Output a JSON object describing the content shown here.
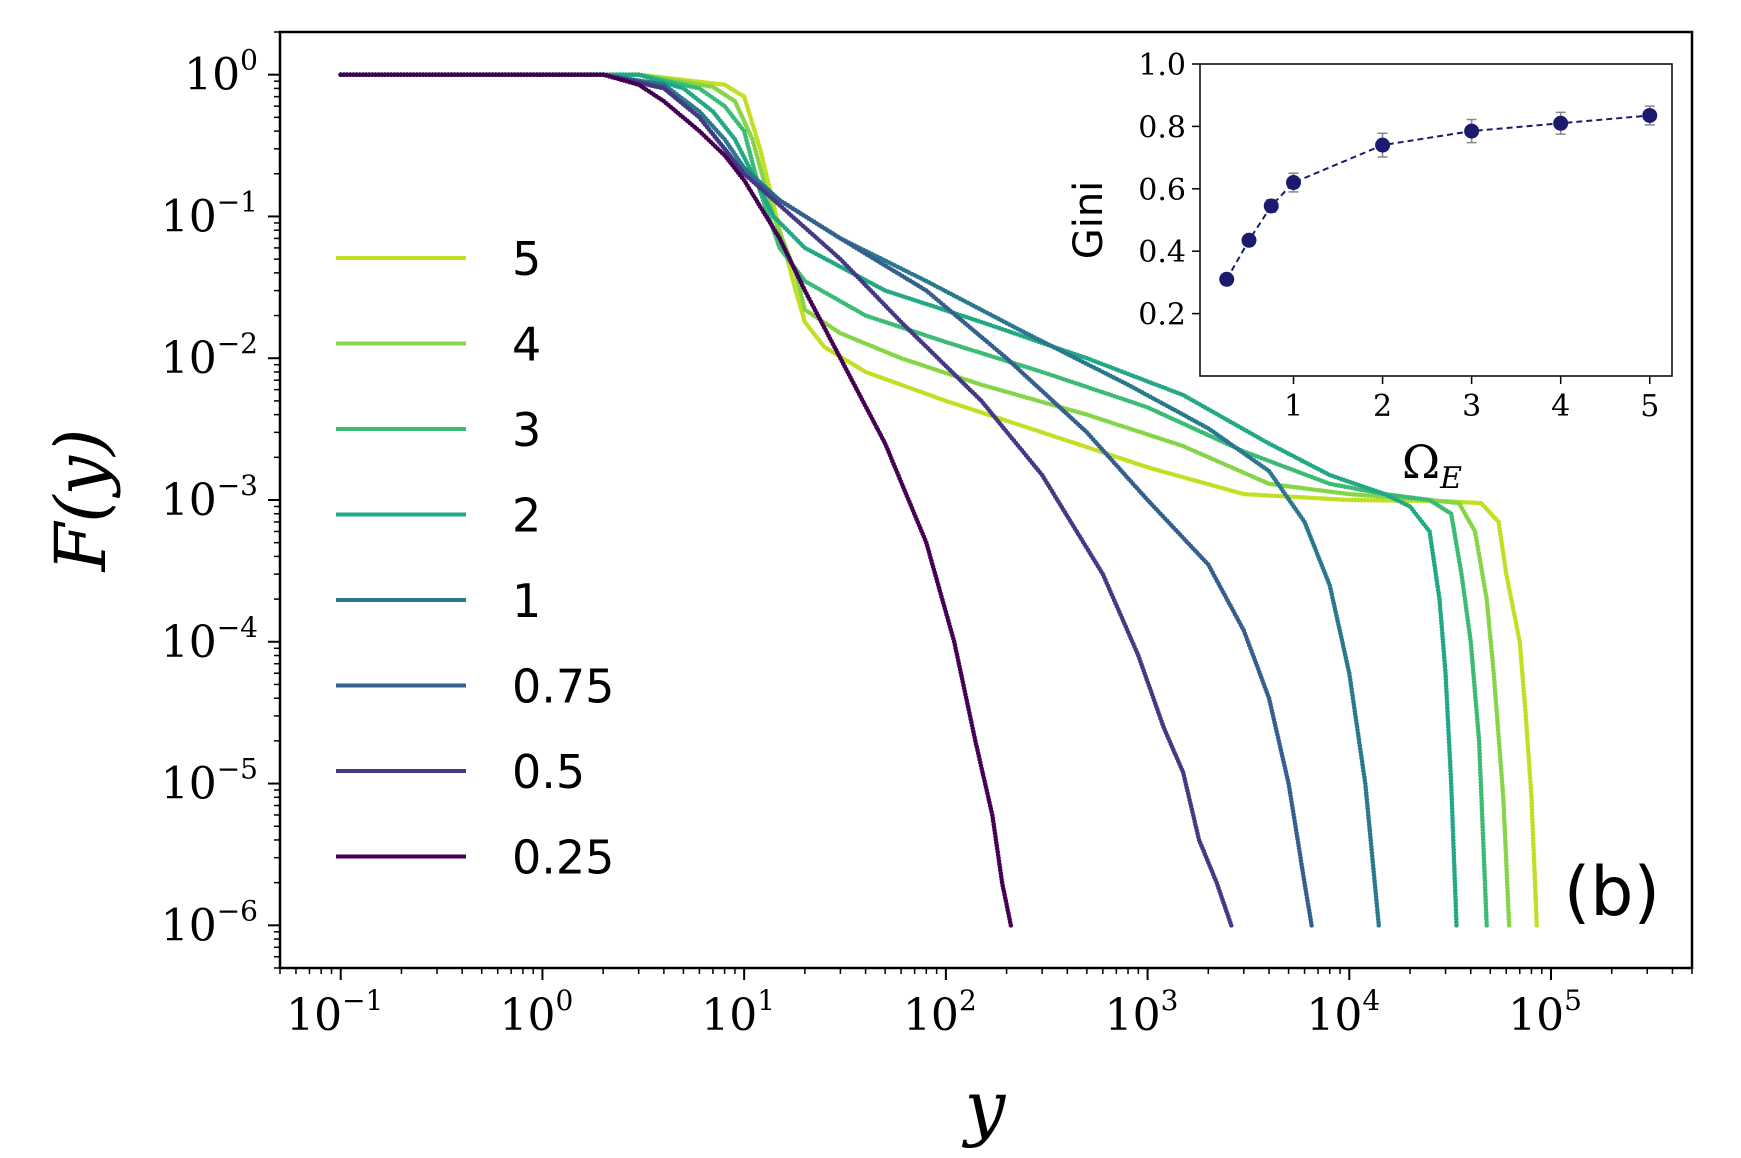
{
  "chart_data": [
    {
      "type": "line",
      "panel_label": "(b)",
      "xlabel": "y",
      "ylabel": "F(y)",
      "xscale": "log",
      "yscale": "log",
      "xlim": [
        0.05,
        500000
      ],
      "ylim": [
        5e-07,
        2
      ],
      "x_ticks": [
        {
          "value": 0.1,
          "base": "10",
          "exp": "−1"
        },
        {
          "value": 1,
          "base": "10",
          "exp": "0"
        },
        {
          "value": 10,
          "base": "10",
          "exp": "1"
        },
        {
          "value": 100,
          "base": "10",
          "exp": "2"
        },
        {
          "value": 1000,
          "base": "10",
          "exp": "3"
        },
        {
          "value": 10000,
          "base": "10",
          "exp": "4"
        },
        {
          "value": 100000,
          "base": "10",
          "exp": "5"
        }
      ],
      "y_ticks": [
        {
          "value": 1,
          "base": "10",
          "exp": "0"
        },
        {
          "value": 0.1,
          "base": "10",
          "exp": "−1"
        },
        {
          "value": 0.01,
          "base": "10",
          "exp": "−2"
        },
        {
          "value": 0.001,
          "base": "10",
          "exp": "−3"
        },
        {
          "value": 0.0001,
          "base": "10",
          "exp": "−4"
        },
        {
          "value": 1e-05,
          "base": "10",
          "exp": "−5"
        },
        {
          "value": 1e-06,
          "base": "10",
          "exp": "−6"
        }
      ],
      "legend_position": "left",
      "series": [
        {
          "name": "5",
          "color": "#c2df23",
          "points": [
            [
              0.1,
              1
            ],
            [
              3,
              1
            ],
            [
              8,
              0.85
            ],
            [
              10,
              0.7
            ],
            [
              12,
              0.3
            ],
            [
              15,
              0.08
            ],
            [
              18,
              0.03
            ],
            [
              20,
              0.018
            ],
            [
              25,
              0.012
            ],
            [
              40,
              0.008
            ],
            [
              100,
              0.005
            ],
            [
              300,
              0.003
            ],
            [
              1000,
              0.0017
            ],
            [
              3000,
              0.0011
            ],
            [
              10000,
              0.001
            ],
            [
              30000,
              0.00098
            ],
            [
              45000,
              0.00095
            ],
            [
              55000,
              0.0007
            ],
            [
              60000,
              0.0003
            ],
            [
              70000,
              0.0001
            ],
            [
              75000,
              3e-05
            ],
            [
              80000,
              8e-06
            ],
            [
              85000,
              1e-06
            ]
          ]
        },
        {
          "name": "4",
          "color": "#86d549",
          "points": [
            [
              0.1,
              1
            ],
            [
              3,
              1
            ],
            [
              7,
              0.82
            ],
            [
              9,
              0.65
            ],
            [
              11,
              0.35
            ],
            [
              14,
              0.1
            ],
            [
              18,
              0.04
            ],
            [
              20,
              0.022
            ],
            [
              30,
              0.015
            ],
            [
              60,
              0.01
            ],
            [
              150,
              0.0065
            ],
            [
              500,
              0.004
            ],
            [
              1500,
              0.0024
            ],
            [
              4000,
              0.0013
            ],
            [
              10000,
              0.0011
            ],
            [
              25000,
              0.001
            ],
            [
              35000,
              0.00095
            ],
            [
              42000,
              0.0006
            ],
            [
              48000,
              0.0002
            ],
            [
              52000,
              6e-05
            ],
            [
              58000,
              8e-06
            ],
            [
              62000,
              1e-06
            ]
          ]
        },
        {
          "name": "3",
          "color": "#3bbb75",
          "points": [
            [
              0.1,
              1
            ],
            [
              3,
              1
            ],
            [
              6,
              0.8
            ],
            [
              8,
              0.6
            ],
            [
              10,
              0.4
            ],
            [
              12,
              0.15
            ],
            [
              15,
              0.06
            ],
            [
              20,
              0.035
            ],
            [
              40,
              0.02
            ],
            [
              100,
              0.013
            ],
            [
              300,
              0.008
            ],
            [
              1000,
              0.0045
            ],
            [
              3000,
              0.0022
            ],
            [
              8000,
              0.0013
            ],
            [
              15000,
              0.0011
            ],
            [
              25000,
              0.001
            ],
            [
              32000,
              0.0008
            ],
            [
              36000,
              0.0003
            ],
            [
              40000,
              0.0001
            ],
            [
              44000,
              2e-05
            ],
            [
              48000,
              1e-06
            ]
          ]
        },
        {
          "name": "2",
          "color": "#22a884",
          "points": [
            [
              0.1,
              1
            ],
            [
              3,
              1
            ],
            [
              5,
              0.8
            ],
            [
              7,
              0.55
            ],
            [
              9,
              0.35
            ],
            [
              11,
              0.2
            ],
            [
              14,
              0.1
            ],
            [
              20,
              0.06
            ],
            [
              50,
              0.03
            ],
            [
              150,
              0.018
            ],
            [
              500,
              0.01
            ],
            [
              1500,
              0.0055
            ],
            [
              4000,
              0.0025
            ],
            [
              8000,
              0.0015
            ],
            [
              15000,
              0.0011
            ],
            [
              20000,
              0.0009
            ],
            [
              25000,
              0.0006
            ],
            [
              28000,
              0.0002
            ],
            [
              30000,
              6e-05
            ],
            [
              32000,
              1e-05
            ],
            [
              34000,
              1e-06
            ]
          ]
        },
        {
          "name": "1",
          "color": "#2a788e",
          "points": [
            [
              0.1,
              1
            ],
            [
              2,
              1
            ],
            [
              4,
              0.85
            ],
            [
              6,
              0.55
            ],
            [
              8,
              0.35
            ],
            [
              10,
              0.22
            ],
            [
              15,
              0.13
            ],
            [
              30,
              0.07
            ],
            [
              80,
              0.035
            ],
            [
              250,
              0.015
            ],
            [
              800,
              0.0065
            ],
            [
              2000,
              0.0032
            ],
            [
              4000,
              0.0016
            ],
            [
              6000,
              0.0007
            ],
            [
              8000,
              0.00025
            ],
            [
              10000,
              6e-05
            ],
            [
              12000,
              1e-05
            ],
            [
              14000,
              1e-06
            ]
          ]
        },
        {
          "name": "0.75",
          "color": "#355f8d",
          "points": [
            [
              0.1,
              1
            ],
            [
              2,
              1
            ],
            [
              4,
              0.82
            ],
            [
              6,
              0.5
            ],
            [
              8,
              0.3
            ],
            [
              10,
              0.2
            ],
            [
              15,
              0.13
            ],
            [
              30,
              0.07
            ],
            [
              80,
              0.03
            ],
            [
              200,
              0.01
            ],
            [
              500,
              0.003
            ],
            [
              1000,
              0.001
            ],
            [
              2000,
              0.00035
            ],
            [
              3000,
              0.00012
            ],
            [
              4000,
              4e-05
            ],
            [
              5000,
              1e-05
            ],
            [
              6000,
              2e-06
            ],
            [
              6500,
              1e-06
            ]
          ]
        },
        {
          "name": "0.5",
          "color": "#443983",
          "points": [
            [
              0.1,
              1
            ],
            [
              2,
              1
            ],
            [
              4,
              0.8
            ],
            [
              6,
              0.5
            ],
            [
              8,
              0.3
            ],
            [
              10,
              0.2
            ],
            [
              15,
              0.12
            ],
            [
              30,
              0.05
            ],
            [
              60,
              0.018
            ],
            [
              150,
              0.005
            ],
            [
              300,
              0.0015
            ],
            [
              600,
              0.0003
            ],
            [
              900,
              8e-05
            ],
            [
              1200,
              2.5e-05
            ],
            [
              1500,
              1.2e-05
            ],
            [
              1800,
              4e-06
            ],
            [
              2200,
              2e-06
            ],
            [
              2600,
              1e-06
            ]
          ]
        },
        {
          "name": "0.25",
          "color": "#440154",
          "points": [
            [
              0.1,
              1
            ],
            [
              2,
              1
            ],
            [
              3,
              0.85
            ],
            [
              4,
              0.65
            ],
            [
              6,
              0.4
            ],
            [
              8,
              0.27
            ],
            [
              10,
              0.18
            ],
            [
              15,
              0.07
            ],
            [
              20,
              0.03
            ],
            [
              30,
              0.01
            ],
            [
              50,
              0.0025
            ],
            [
              80,
              0.0005
            ],
            [
              110,
              0.0001
            ],
            [
              140,
              2e-05
            ],
            [
              170,
              6e-06
            ],
            [
              190,
              2e-06
            ],
            [
              210,
              1e-06
            ]
          ]
        }
      ]
    },
    {
      "type": "scatter",
      "xlabel": "Ω",
      "xlabel_sub": "E",
      "ylabel": "Gini",
      "xlim": [
        -0.05,
        5.25
      ],
      "ylim": [
        0,
        1.0
      ],
      "x_ticks": [
        "1",
        "2",
        "3",
        "4",
        "5"
      ],
      "y_ticks": [
        "0.2",
        "0.4",
        "0.6",
        "0.8",
        "1.0"
      ],
      "x": [
        0.25,
        0.5,
        0.75,
        1,
        2,
        3,
        4,
        5
      ],
      "y": [
        0.31,
        0.435,
        0.545,
        0.62,
        0.74,
        0.785,
        0.81,
        0.835
      ],
      "yerr": [
        0.01,
        0.012,
        0.02,
        0.03,
        0.038,
        0.037,
        0.035,
        0.03
      ],
      "marker_color": "#1b1a6e"
    }
  ]
}
